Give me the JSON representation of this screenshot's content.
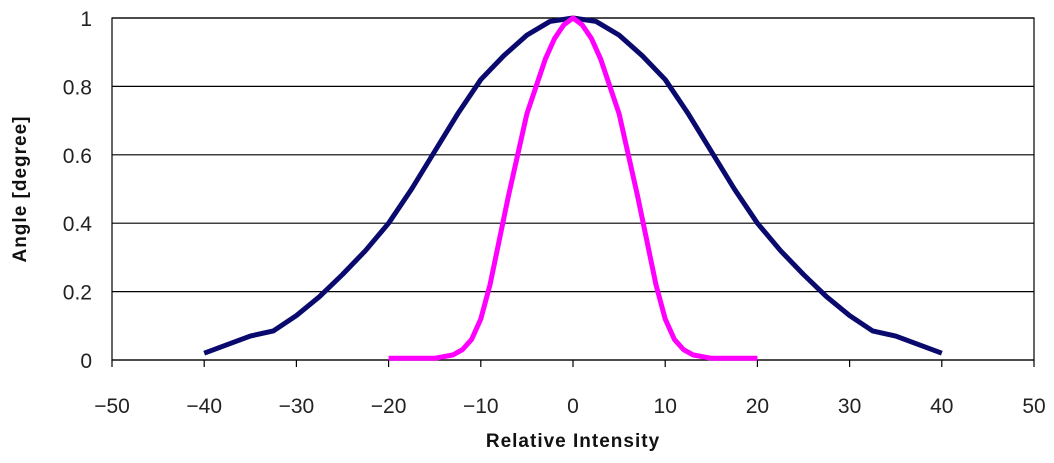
{
  "chart_data": {
    "type": "line",
    "title": "",
    "xlabel": "Relative Intensity",
    "ylabel": "Angle [degree]",
    "xlim": [
      -50,
      50
    ],
    "ylim": [
      0,
      1
    ],
    "xticks": [
      -50,
      -40,
      -30,
      -20,
      -10,
      0,
      10,
      20,
      30,
      40,
      50
    ],
    "yticks": [
      0,
      0.2,
      0.4,
      0.6,
      0.8,
      1
    ],
    "xtick_labels": [
      "−50",
      "−40",
      "−30",
      "−20",
      "−10",
      "0",
      "10",
      "20",
      "30",
      "40",
      "50"
    ],
    "ytick_labels": [
      "0",
      "0.2",
      "0.4",
      "0.6",
      "0.8",
      "1"
    ],
    "grid": "horizontal",
    "legend": "none",
    "series": [
      {
        "color": "#0a0a6e",
        "x": [
          -40,
          -35,
          -32.5,
          -30,
          -27.5,
          -25,
          -22.5,
          -20,
          -17.5,
          -15,
          -12.5,
          -10,
          -7.5,
          -5,
          -2.5,
          0,
          2.5,
          5,
          7.5,
          10,
          12.5,
          15,
          17.5,
          20,
          22.5,
          25,
          27.5,
          30,
          32.5,
          35,
          40
        ],
        "values": [
          0.02,
          0.07,
          0.085,
          0.13,
          0.185,
          0.25,
          0.32,
          0.4,
          0.5,
          0.61,
          0.72,
          0.82,
          0.89,
          0.95,
          0.99,
          1.0,
          0.99,
          0.95,
          0.89,
          0.82,
          0.72,
          0.61,
          0.5,
          0.4,
          0.32,
          0.25,
          0.185,
          0.13,
          0.085,
          0.07,
          0.02
        ]
      },
      {
        "color": "#ff00ff",
        "x": [
          -20,
          -17.5,
          -15,
          -13,
          -12,
          -11,
          -10,
          -9,
          -8,
          -7,
          -6,
          -5,
          -4,
          -3,
          -2,
          -1,
          0,
          1,
          2,
          3,
          4,
          5,
          6,
          7,
          8,
          9,
          10,
          11,
          12,
          13,
          15,
          17.5,
          20
        ],
        "values": [
          0.005,
          0.005,
          0.005,
          0.015,
          0.03,
          0.06,
          0.12,
          0.22,
          0.35,
          0.48,
          0.6,
          0.72,
          0.8,
          0.88,
          0.94,
          0.98,
          1.0,
          0.98,
          0.94,
          0.88,
          0.8,
          0.72,
          0.6,
          0.48,
          0.35,
          0.22,
          0.12,
          0.06,
          0.03,
          0.015,
          0.005,
          0.005,
          0.005
        ]
      }
    ]
  }
}
